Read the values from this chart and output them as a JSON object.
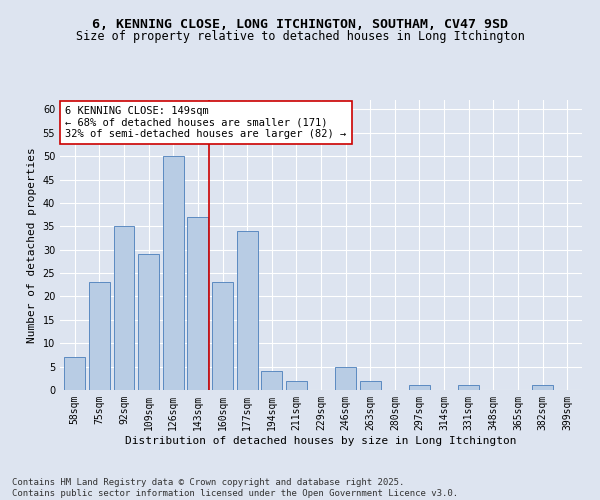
{
  "title1": "6, KENNING CLOSE, LONG ITCHINGTON, SOUTHAM, CV47 9SD",
  "title2": "Size of property relative to detached houses in Long Itchington",
  "xlabel": "Distribution of detached houses by size in Long Itchington",
  "ylabel": "Number of detached properties",
  "categories": [
    "58sqm",
    "75sqm",
    "92sqm",
    "109sqm",
    "126sqm",
    "143sqm",
    "160sqm",
    "177sqm",
    "194sqm",
    "211sqm",
    "229sqm",
    "246sqm",
    "263sqm",
    "280sqm",
    "297sqm",
    "314sqm",
    "331sqm",
    "348sqm",
    "365sqm",
    "382sqm",
    "399sqm"
  ],
  "values": [
    7,
    23,
    35,
    29,
    50,
    37,
    23,
    34,
    4,
    2,
    0,
    5,
    2,
    0,
    1,
    0,
    1,
    0,
    0,
    1,
    0
  ],
  "bar_color": "#b8cce4",
  "bar_edge_color": "#4a7ebb",
  "ylim": [
    0,
    62
  ],
  "yticks": [
    0,
    5,
    10,
    15,
    20,
    25,
    30,
    35,
    40,
    45,
    50,
    55,
    60
  ],
  "property_line_x": 5.45,
  "annotation_text": "6 KENNING CLOSE: 149sqm\n← 68% of detached houses are smaller (171)\n32% of semi-detached houses are larger (82) →",
  "annotation_box_color": "#ffffff",
  "annotation_box_edgecolor": "#cc0000",
  "vline_color": "#cc0000",
  "bg_color": "#dde4f0",
  "grid_color": "#ffffff",
  "footnote": "Contains HM Land Registry data © Crown copyright and database right 2025.\nContains public sector information licensed under the Open Government Licence v3.0.",
  "title_fontsize": 9.5,
  "subtitle_fontsize": 8.5,
  "axis_label_fontsize": 8,
  "tick_fontsize": 7,
  "annotation_fontsize": 7.5,
  "footnote_fontsize": 6.5
}
